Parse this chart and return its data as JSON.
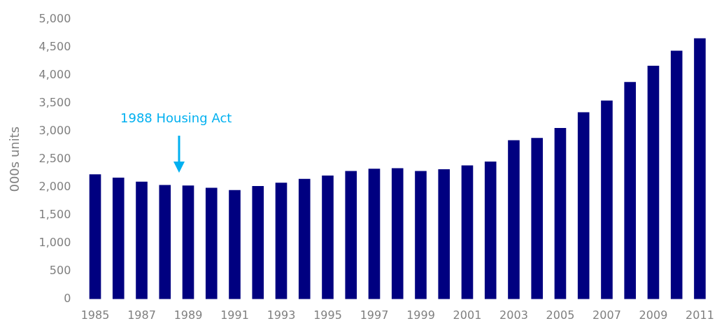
{
  "chart_data": {
    "type": "bar",
    "ylabel": "000s units",
    "categories": [
      "1985",
      null,
      "1987",
      null,
      "1989",
      null,
      "1991",
      null,
      "1993",
      null,
      "1995",
      null,
      "1997",
      null,
      "1999",
      null,
      "2001",
      null,
      "2003",
      null,
      "2005",
      null,
      "2007",
      null,
      "2009",
      null,
      "2011"
    ],
    "values": [
      2230,
      2170,
      2100,
      2040,
      2030,
      1990,
      1950,
      2020,
      2080,
      2150,
      2210,
      2290,
      2330,
      2340,
      2290,
      2320,
      2390,
      2460,
      2840,
      2880,
      3060,
      3340,
      3550,
      3880,
      4170,
      4440,
      4660
    ],
    "color": "#000080",
    "ylim": [
      0,
      5000
    ],
    "yticks": [
      0,
      500,
      {
        "value": 1000,
        "label": "1,000"
      },
      {
        "value": 1500,
        "label": "1,500"
      },
      {
        "value": 2000,
        "label": "2,000"
      },
      {
        "value": 2500,
        "label": "2,500"
      },
      {
        "value": 3000,
        "label": "3,000"
      },
      {
        "value": 3500,
        "label": "3,500"
      },
      {
        "value": 4000,
        "label": "4,000"
      },
      {
        "value": 4500,
        "label": "4,500"
      },
      {
        "value": 5000,
        "label": "5,000"
      }
    ],
    "grid": false,
    "legend": false,
    "annotations": [
      "1988 Housing Act"
    ]
  }
}
